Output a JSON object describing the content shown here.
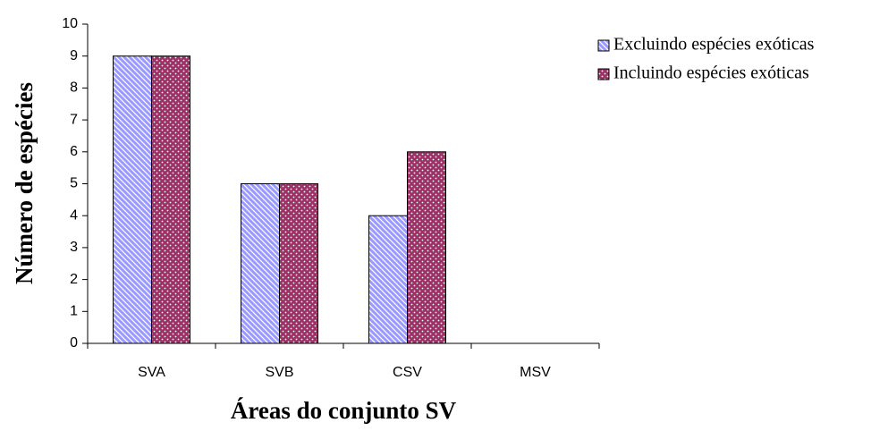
{
  "chart_data": {
    "type": "bar",
    "x_label": "Áreas do conjunto SV",
    "y_label": "Número de espécies",
    "categories": [
      "SVA",
      "SVB",
      "CSV",
      "MSV"
    ],
    "series": [
      {
        "name": "Excluindo espécies exóticas",
        "color": "#9999ff",
        "values": [
          9,
          5,
          4,
          0
        ]
      },
      {
        "name": "Incluindo espécies exóticas",
        "color": "#993366",
        "values": [
          9,
          5,
          6,
          0
        ]
      }
    ],
    "ylim": [
      0,
      10
    ],
    "yticks": [
      0,
      1,
      2,
      3,
      4,
      5,
      6,
      7,
      8,
      9,
      10
    ],
    "legend": "right"
  }
}
